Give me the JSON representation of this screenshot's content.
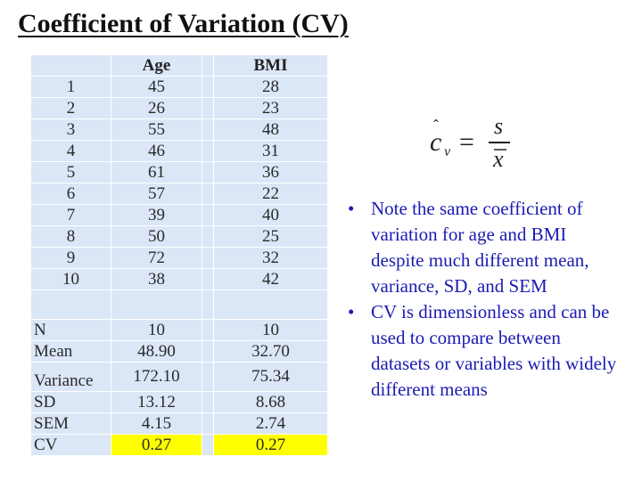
{
  "title": "Coefficient of Variation (CV)",
  "table": {
    "headers": [
      "",
      "Age",
      "BMI"
    ],
    "rows": [
      {
        "label": "1",
        "age": "45",
        "bmi": "28"
      },
      {
        "label": "2",
        "age": "26",
        "bmi": "23"
      },
      {
        "label": "3",
        "age": "55",
        "bmi": "48"
      },
      {
        "label": "4",
        "age": "46",
        "bmi": "31"
      },
      {
        "label": "5",
        "age": "61",
        "bmi": "36"
      },
      {
        "label": "6",
        "age": "57",
        "bmi": "22"
      },
      {
        "label": "7",
        "age": "39",
        "bmi": "40"
      },
      {
        "label": "8",
        "age": "50",
        "bmi": "25"
      },
      {
        "label": "9",
        "age": "72",
        "bmi": "32"
      },
      {
        "label": "10",
        "age": "38",
        "bmi": "42"
      }
    ],
    "stats": [
      {
        "label": "N",
        "age": "10",
        "bmi": "10"
      },
      {
        "label": "Mean",
        "age": "48.90",
        "bmi": "32.70"
      },
      {
        "label": "Variance",
        "age": "172.10",
        "bmi": "75.34"
      },
      {
        "label": "SD",
        "age": "13.12",
        "bmi": "8.68"
      },
      {
        "label": "SEM",
        "age": "4.15",
        "bmi": "2.74"
      },
      {
        "label": "CV",
        "age": "0.27",
        "bmi": "0.27"
      }
    ],
    "highlight_color": "#ffff00",
    "cell_color": "#dbe6f7"
  },
  "formula": {
    "lhs_symbol": "c",
    "lhs_subscript": "v",
    "equals": "=",
    "numerator": "s",
    "denominator": "x"
  },
  "bullets": [
    "Note the same coefficient of variation for age and BMI despite much different mean, variance, SD, and SEM",
    "CV is dimensionless and can be used to compare between datasets or variables with widely different means"
  ],
  "colors": {
    "bullet_text": "#1b1bb3",
    "title_text": "#111111"
  }
}
